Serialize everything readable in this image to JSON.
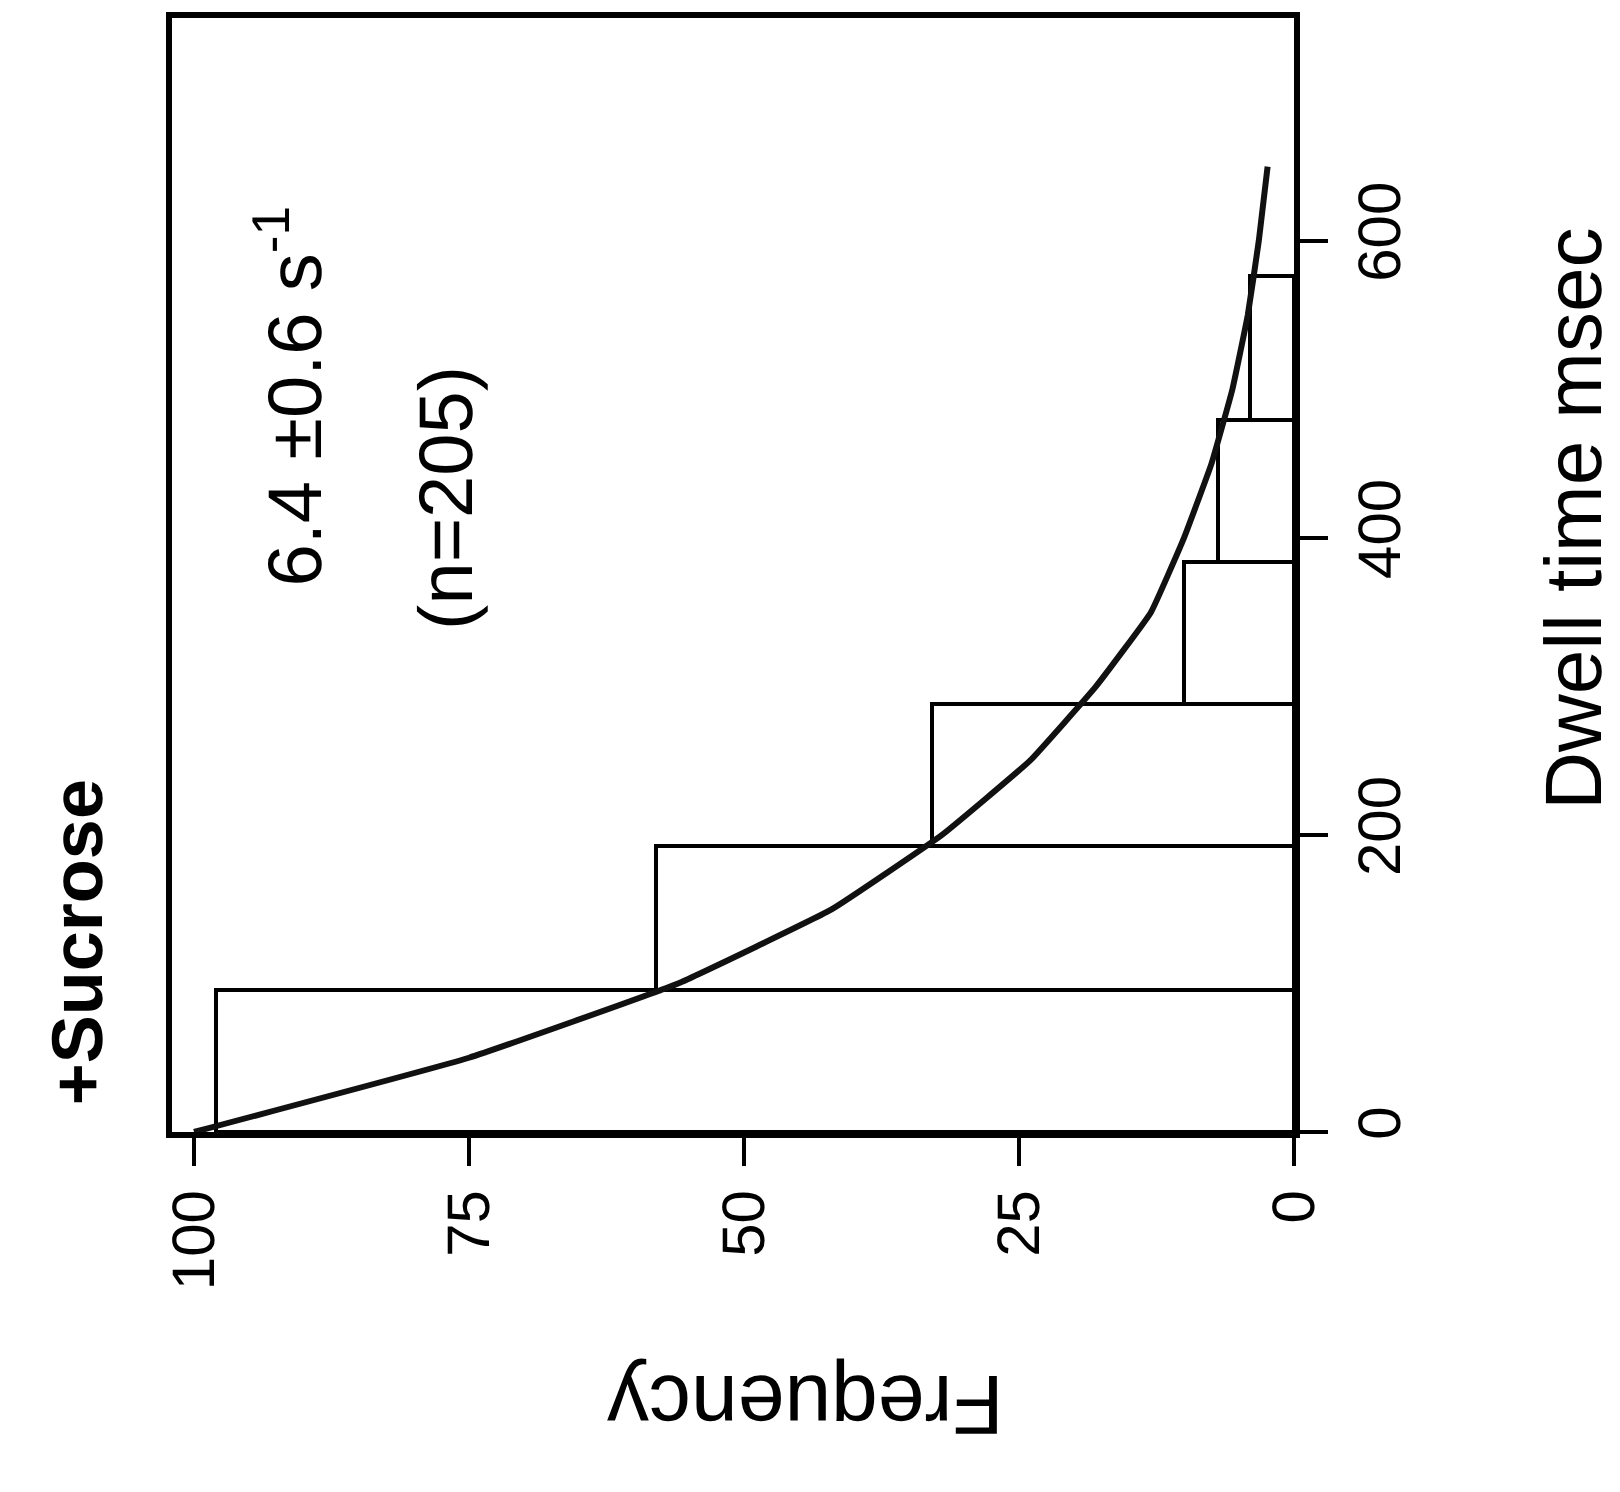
{
  "chart_data": {
    "type": "histogram",
    "orientation": "horizontal",
    "title": "+Sucrose",
    "xlabel": "Frequency",
    "ylabel": "Dwell time msec",
    "annotations": [
      "6.4 ±0.6 s$^{-1}$",
      "(n=205)"
    ],
    "bins": [
      0,
      96,
      192,
      288,
      384,
      480,
      576
    ],
    "values": [
      98,
      58,
      33,
      10,
      7,
      4
    ],
    "color": "#ffffff",
    "series": [
      {
        "type": "line",
        "color": "#111111",
        "x": [
          0,
          50,
          100,
          150,
          200,
          250,
          300,
          350,
          400,
          450,
          500,
          550,
          600,
          650
        ],
        "values": [
          100,
          75,
          56,
          42,
          32,
          24,
          18,
          13,
          10,
          7.5,
          5.6,
          4.2,
          3.2,
          2.4
        ]
      }
    ],
    "xlim": [
      102,
      0
    ],
    "xticks": [
      0,
      25,
      50,
      75,
      100
    ],
    "ylim": [
      0,
      750
    ],
    "yticks": [
      0,
      200,
      400,
      600
    ]
  }
}
